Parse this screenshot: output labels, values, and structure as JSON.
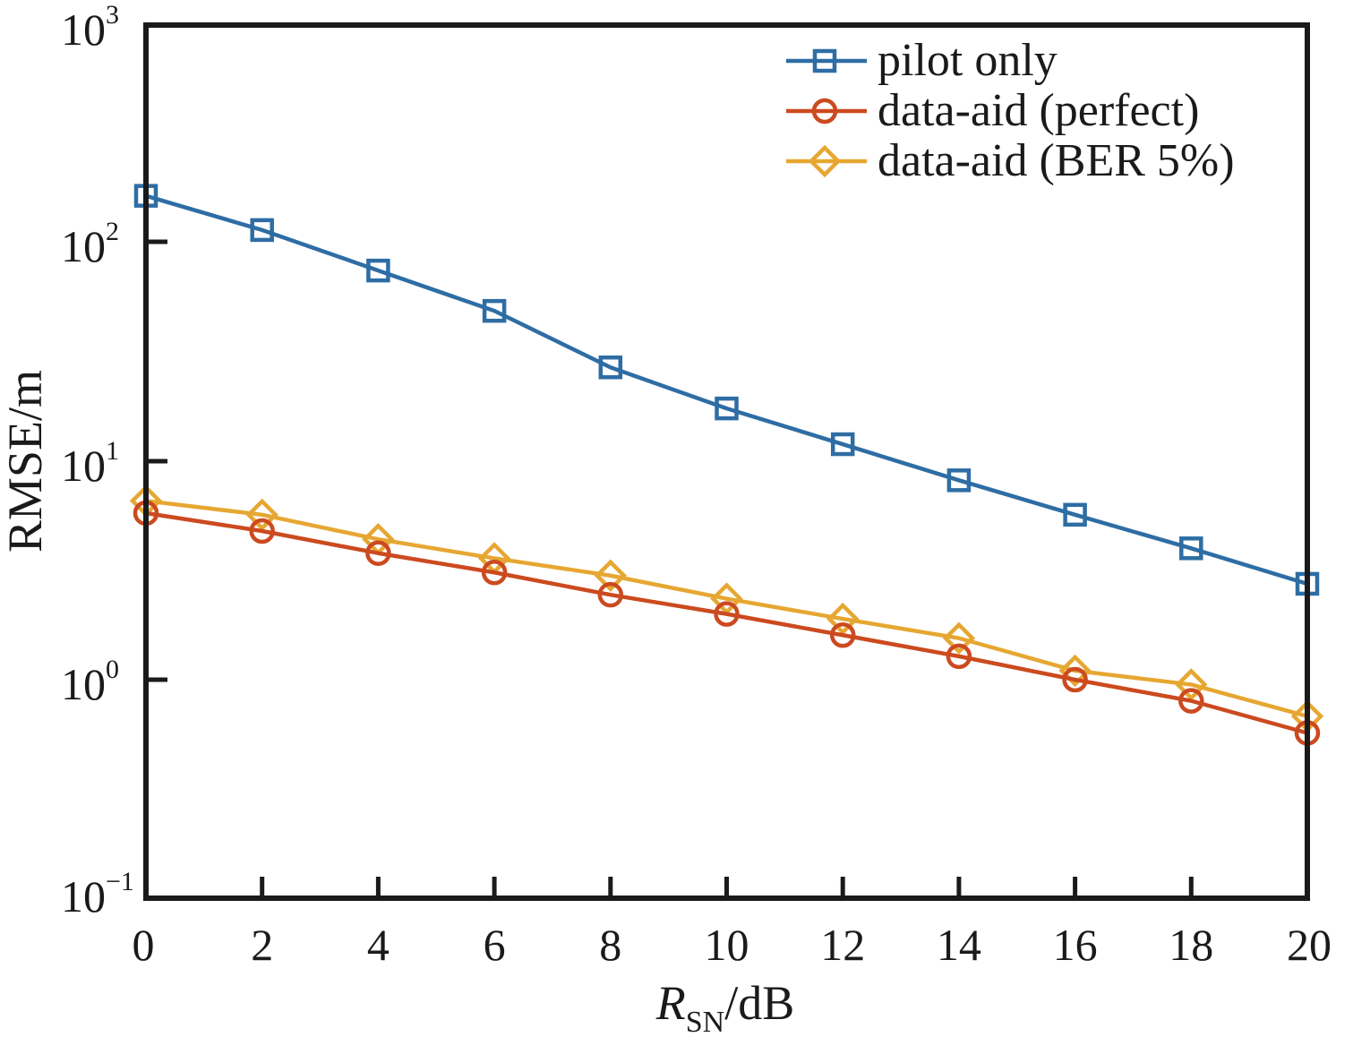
{
  "chart_data": {
    "type": "line",
    "xlabel": {
      "main": "R",
      "sub": "SN",
      "unit": "/dB"
    },
    "ylabel": "RMSE/m",
    "yscale": "log",
    "xlim": [
      0,
      20
    ],
    "ylim": [
      0.1,
      1000
    ],
    "xticks": [
      "0",
      "2",
      "4",
      "6",
      "8",
      "10",
      "12",
      "14",
      "16",
      "18",
      "20"
    ],
    "yticks": [
      {
        "value": 1000,
        "base": "10",
        "exp": "3"
      },
      {
        "value": 100,
        "base": "10",
        "exp": "2"
      },
      {
        "value": 10,
        "base": "10",
        "exp": "1"
      },
      {
        "value": 1,
        "base": "10",
        "exp": "0"
      },
      {
        "value": 0.1,
        "base": "10",
        "exp": "−1"
      }
    ],
    "grid": false,
    "legend_position": "top-right",
    "x": [
      0,
      2,
      4,
      6,
      8,
      10,
      12,
      14,
      16,
      18,
      20
    ],
    "series": [
      {
        "name": "pilot only",
        "marker": "square",
        "color": "#2e6da4",
        "values": [
          165,
          115,
          75,
          49,
          27,
          17.5,
          12,
          8.2,
          5.7,
          4.0,
          2.75
        ]
      },
      {
        "name": "data-aid (perfect)",
        "marker": "circle",
        "color": "#cc4a1f",
        "values": [
          5.8,
          4.8,
          3.8,
          3.1,
          2.45,
          2.0,
          1.6,
          1.28,
          1.0,
          0.8,
          0.57
        ]
      },
      {
        "name": "data-aid (BER 5%)",
        "marker": "diamond",
        "color": "#e6a732",
        "values": [
          6.6,
          5.7,
          4.4,
          3.6,
          3.0,
          2.35,
          1.9,
          1.55,
          1.1,
          0.95,
          0.68
        ]
      }
    ]
  }
}
